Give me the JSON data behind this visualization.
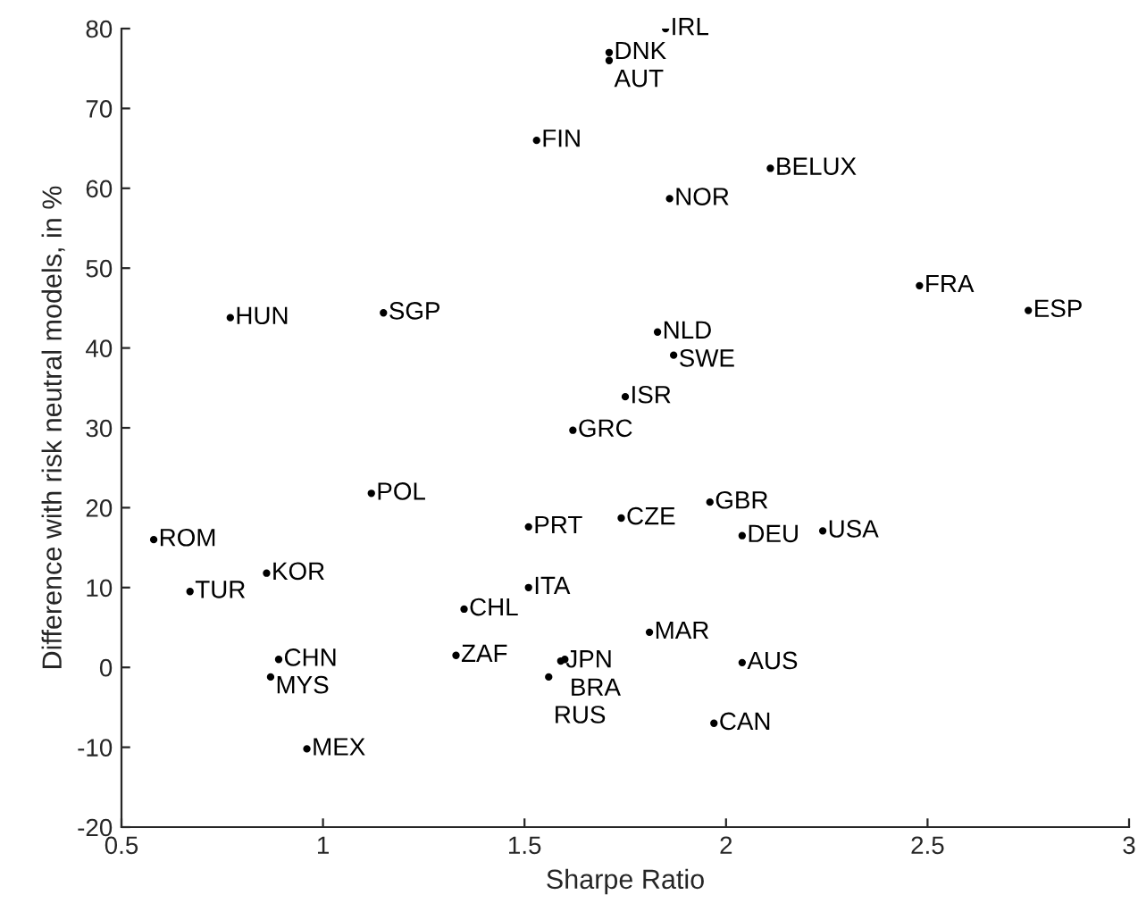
{
  "chart_data": {
    "type": "scatter",
    "xlabel": "Sharpe Ratio",
    "ylabel": "Difference with risk neutral models, in %",
    "marker": "circle",
    "grid": false,
    "legend": false,
    "xlim": [
      0.5,
      3
    ],
    "xticks": [
      0.5,
      1,
      1.5,
      2,
      2.5,
      3
    ],
    "ylim": [
      -20,
      80
    ],
    "yticks": [
      -20,
      -10,
      0,
      10,
      20,
      30,
      40,
      50,
      60,
      70,
      80
    ],
    "series": [
      {
        "name": "IRL",
        "color": "#000000",
        "x": [
          1.85
        ],
        "values": [
          80
        ]
      },
      {
        "name": "DNK",
        "color": "#000000",
        "x": [
          1.71
        ],
        "values": [
          77
        ]
      },
      {
        "name": "AUT",
        "color": "#000000",
        "x": [
          1.71
        ],
        "values": [
          76
        ]
      },
      {
        "name": "FIN",
        "color": "#000000",
        "x": [
          1.53
        ],
        "values": [
          66
        ]
      },
      {
        "name": "BELUX",
        "color": "#000000",
        "x": [
          2.11
        ],
        "values": [
          62.5
        ]
      },
      {
        "name": "NOR",
        "color": "#000000",
        "x": [
          1.86
        ],
        "values": [
          58.7
        ]
      },
      {
        "name": "FRA",
        "color": "#000000",
        "x": [
          2.48
        ],
        "values": [
          47.8
        ]
      },
      {
        "name": "ESP",
        "color": "#000000",
        "x": [
          2.75
        ],
        "values": [
          44.7
        ]
      },
      {
        "name": "HUN",
        "color": "#000000",
        "x": [
          0.77
        ],
        "values": [
          43.8
        ]
      },
      {
        "name": "SGP",
        "color": "#000000",
        "x": [
          1.15
        ],
        "values": [
          44.4
        ]
      },
      {
        "name": "NLD",
        "color": "#000000",
        "x": [
          1.83
        ],
        "values": [
          42.0
        ]
      },
      {
        "name": "SWE",
        "color": "#000000",
        "x": [
          1.87
        ],
        "values": [
          39.1
        ]
      },
      {
        "name": "ISR",
        "color": "#000000",
        "x": [
          1.75
        ],
        "values": [
          33.9
        ]
      },
      {
        "name": "GRC",
        "color": "#000000",
        "x": [
          1.62
        ],
        "values": [
          29.7
        ]
      },
      {
        "name": "POL",
        "color": "#000000",
        "x": [
          1.12
        ],
        "values": [
          21.8
        ]
      },
      {
        "name": "GBR",
        "color": "#000000",
        "x": [
          1.96
        ],
        "values": [
          20.7
        ]
      },
      {
        "name": "CZE",
        "color": "#000000",
        "x": [
          1.74
        ],
        "values": [
          18.7
        ]
      },
      {
        "name": "PRT",
        "color": "#000000",
        "x": [
          1.51
        ],
        "values": [
          17.6
        ]
      },
      {
        "name": "USA",
        "color": "#000000",
        "x": [
          2.24
        ],
        "values": [
          17.1
        ]
      },
      {
        "name": "DEU",
        "color": "#000000",
        "x": [
          2.04
        ],
        "values": [
          16.5
        ]
      },
      {
        "name": "ROM",
        "color": "#000000",
        "x": [
          0.58
        ],
        "values": [
          16.0
        ]
      },
      {
        "name": "KOR",
        "color": "#000000",
        "x": [
          0.86
        ],
        "values": [
          11.8
        ]
      },
      {
        "name": "TUR",
        "color": "#000000",
        "x": [
          0.67
        ],
        "values": [
          9.5
        ]
      },
      {
        "name": "ITA",
        "color": "#000000",
        "x": [
          1.51
        ],
        "values": [
          10.0
        ]
      },
      {
        "name": "CHL",
        "color": "#000000",
        "x": [
          1.35
        ],
        "values": [
          7.3
        ]
      },
      {
        "name": "MAR",
        "color": "#000000",
        "x": [
          1.81
        ],
        "values": [
          4.4
        ]
      },
      {
        "name": "ZAF",
        "color": "#000000",
        "x": [
          1.33
        ],
        "values": [
          1.5
        ]
      },
      {
        "name": "CHN",
        "color": "#000000",
        "x": [
          0.89
        ],
        "values": [
          1.0
        ]
      },
      {
        "name": "JPN",
        "color": "#000000",
        "x": [
          1.59
        ],
        "values": [
          0.8
        ]
      },
      {
        "name": "BRA",
        "color": "#000000",
        "x": [
          1.6
        ],
        "values": [
          1.0
        ]
      },
      {
        "name": "AUS",
        "color": "#000000",
        "x": [
          2.04
        ],
        "values": [
          0.6
        ]
      },
      {
        "name": "MYS",
        "color": "#000000",
        "x": [
          0.87
        ],
        "values": [
          -1.2
        ]
      },
      {
        "name": "RUS",
        "color": "#000000",
        "x": [
          1.56
        ],
        "values": [
          -1.2
        ]
      },
      {
        "name": "CAN",
        "color": "#000000",
        "x": [
          1.97
        ],
        "values": [
          -7.0
        ]
      },
      {
        "name": "MEX",
        "color": "#000000",
        "x": [
          0.96
        ],
        "values": [
          -10.2
        ]
      }
    ]
  }
}
